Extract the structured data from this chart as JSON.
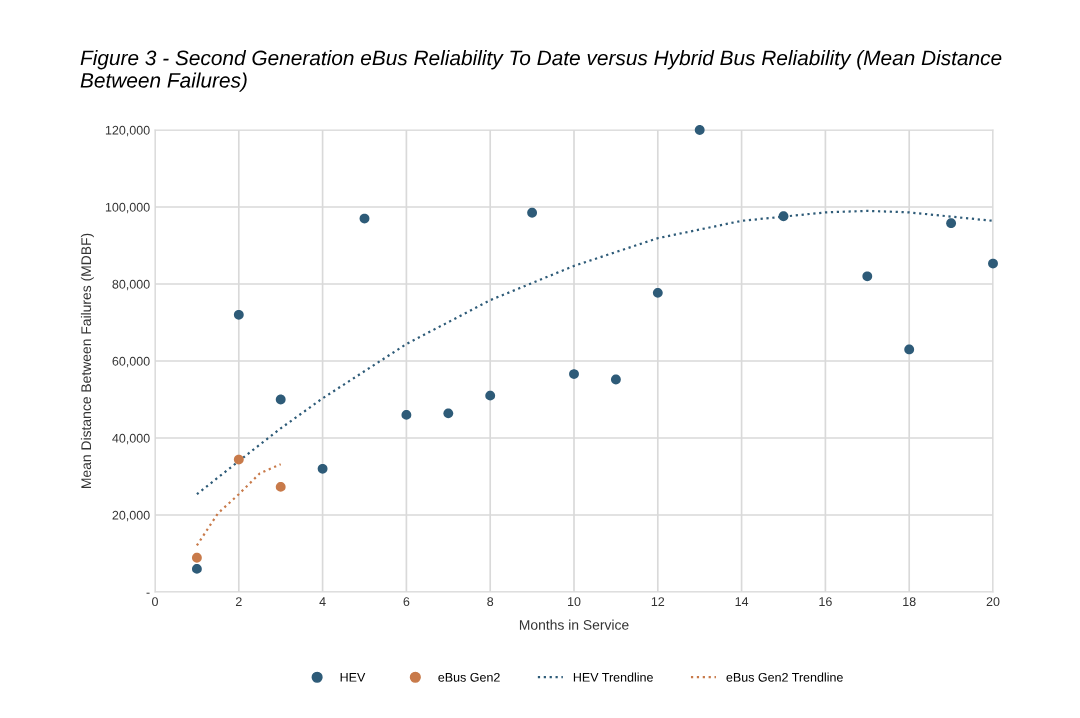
{
  "chart_data": {
    "type": "scatter",
    "title": "Figure 3 - Second Generation eBus Reliability To Date versus Hybrid Bus Reliability (Mean Distance Between Failures)",
    "xlabel": "Months in Service",
    "ylabel": "Mean Distance Between Failures (MDBF)",
    "series": [
      {
        "name": "HEV",
        "color": "#2e5b78",
        "marker": "circle",
        "x": [
          1,
          2,
          3,
          4,
          5,
          6,
          7,
          8,
          9,
          10,
          11,
          12,
          13,
          15,
          17,
          18,
          19,
          20
        ],
        "values": [
          6000,
          72000,
          50000,
          32000,
          97000,
          46000,
          46400,
          51000,
          98500,
          56600,
          55200,
          77700,
          120000,
          97600,
          82000,
          63000,
          95800,
          85300
        ]
      },
      {
        "name": "eBus Gen2",
        "color": "#c87a4a",
        "marker": "circle",
        "x": [
          1,
          2,
          3
        ],
        "values": [
          8900,
          34400,
          27300
        ]
      },
      {
        "name": "HEV Trendline",
        "type": "line",
        "color": "#2e5b78",
        "line_style": "dotted",
        "marker": "none",
        "x": [
          1,
          2,
          3,
          4,
          6,
          8,
          10,
          12,
          14,
          16,
          17,
          18,
          20
        ],
        "values": [
          25400,
          34000,
          42500,
          50300,
          64400,
          75800,
          84700,
          91900,
          96400,
          98600,
          99000,
          98600,
          96400
        ]
      },
      {
        "name": "eBus Gen2 Trendline",
        "type": "line",
        "color": "#c87a4a",
        "line_style": "dotted",
        "marker": "none",
        "x": [
          1,
          1.5,
          2,
          2.5,
          3
        ],
        "values": [
          12100,
          20400,
          25400,
          30800,
          33200
        ]
      }
    ],
    "xlim": [
      0,
      20
    ],
    "xticks": [
      0,
      2,
      4,
      6,
      8,
      10,
      12,
      14,
      16,
      18,
      20
    ],
    "ylim": [
      0,
      120000
    ],
    "yticks": [
      {
        "value": 0,
        "label": "-"
      },
      {
        "value": 20000,
        "label": "20,000"
      },
      {
        "value": 40000,
        "label": "40,000"
      },
      {
        "value": 60000,
        "label": "60,000"
      },
      {
        "value": 80000,
        "label": "80,000"
      },
      {
        "value": 100000,
        "label": "100,000"
      },
      {
        "value": 120000,
        "label": "120,000"
      }
    ],
    "grid": true,
    "legend": "bottom"
  }
}
